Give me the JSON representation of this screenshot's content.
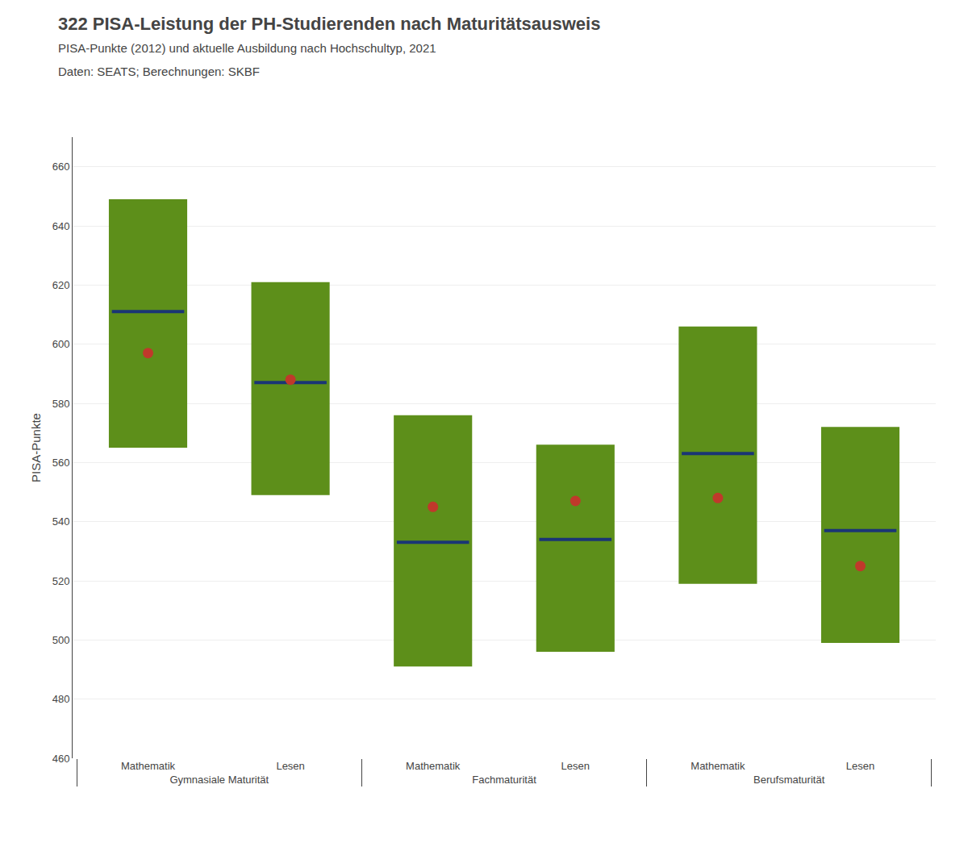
{
  "chart_data": {
    "type": "range",
    "title": "322 PISA-Leistung der PH-Studierenden nach Maturitätsausweis",
    "subtitle": "PISA-Punkte (2012) und aktuelle Ausbildung nach Hochschultyp, 2021",
    "source": "Daten: SEATS; Berechnungen: SKBF",
    "ylabel": "PISA-Punkte",
    "groups": [
      "Gymnasiale Maturität",
      "Gymnasiale Maturität",
      "Fachmaturität",
      "Fachmaturität",
      "Berufsmaturität",
      "Berufsmaturität"
    ],
    "categories": [
      "Mathematik",
      "Lesen",
      "Mathematik",
      "Lesen",
      "Mathematik",
      "Lesen"
    ],
    "series": [
      {
        "type": "range",
        "color": "#5d8f1a",
        "low": [
          565,
          549,
          491,
          496,
          519,
          499
        ],
        "high": [
          649,
          621,
          576,
          566,
          606,
          572
        ]
      },
      {
        "type": "median",
        "color": "#1a3575",
        "values": [
          611,
          587,
          533,
          534,
          563,
          537
        ]
      },
      {
        "type": "mean",
        "color": "#c0392b",
        "marker": "circle",
        "values": [
          597,
          588,
          545,
          547,
          548,
          525
        ]
      }
    ],
    "ylim": [
      460,
      670
    ],
    "yticks": [
      460,
      480,
      500,
      520,
      540,
      560,
      580,
      600,
      620,
      640,
      660
    ],
    "grid": true
  }
}
